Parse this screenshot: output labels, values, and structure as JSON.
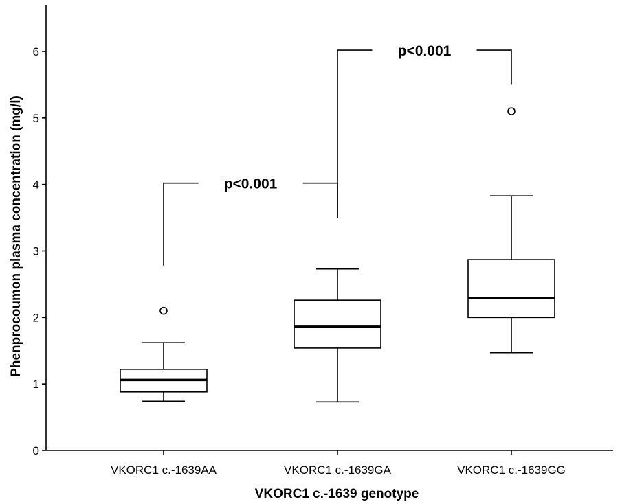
{
  "chart_data": {
    "type": "boxplot",
    "xlabel": "VKORC1 c.-1639 genotype",
    "ylabel": "Phenprocoumon plasma concentration (mg/l)",
    "ylim": [
      0,
      6.5
    ],
    "yticks": [
      0,
      1,
      2,
      3,
      4,
      5,
      6
    ],
    "categories": [
      "VKORC1 c.-1639AA",
      "VKORC1 c.-1639GA",
      "VKORC1 c.-1639GG"
    ],
    "boxes": [
      {
        "whisker_low": 0.74,
        "q1": 0.88,
        "median": 1.06,
        "q3": 1.22,
        "whisker_high": 1.62,
        "outliers": [
          2.1
        ]
      },
      {
        "whisker_low": 0.73,
        "q1": 1.54,
        "median": 1.86,
        "q3": 2.26,
        "whisker_high": 2.73,
        "outliers": []
      },
      {
        "whisker_low": 1.47,
        "q1": 2.0,
        "median": 2.29,
        "q3": 2.87,
        "whisker_high": 3.83,
        "outliers": [
          5.1
        ]
      }
    ],
    "annotations": [
      {
        "label": "p<0.001",
        "from": 0,
        "to": 1,
        "level": 4.02,
        "left_drop": 2.78,
        "right_drop": 3.5
      },
      {
        "label": "p<0.001",
        "from": 1,
        "to": 2,
        "level": 6.02,
        "left_drop": 3.5,
        "right_drop": 5.5
      }
    ]
  }
}
